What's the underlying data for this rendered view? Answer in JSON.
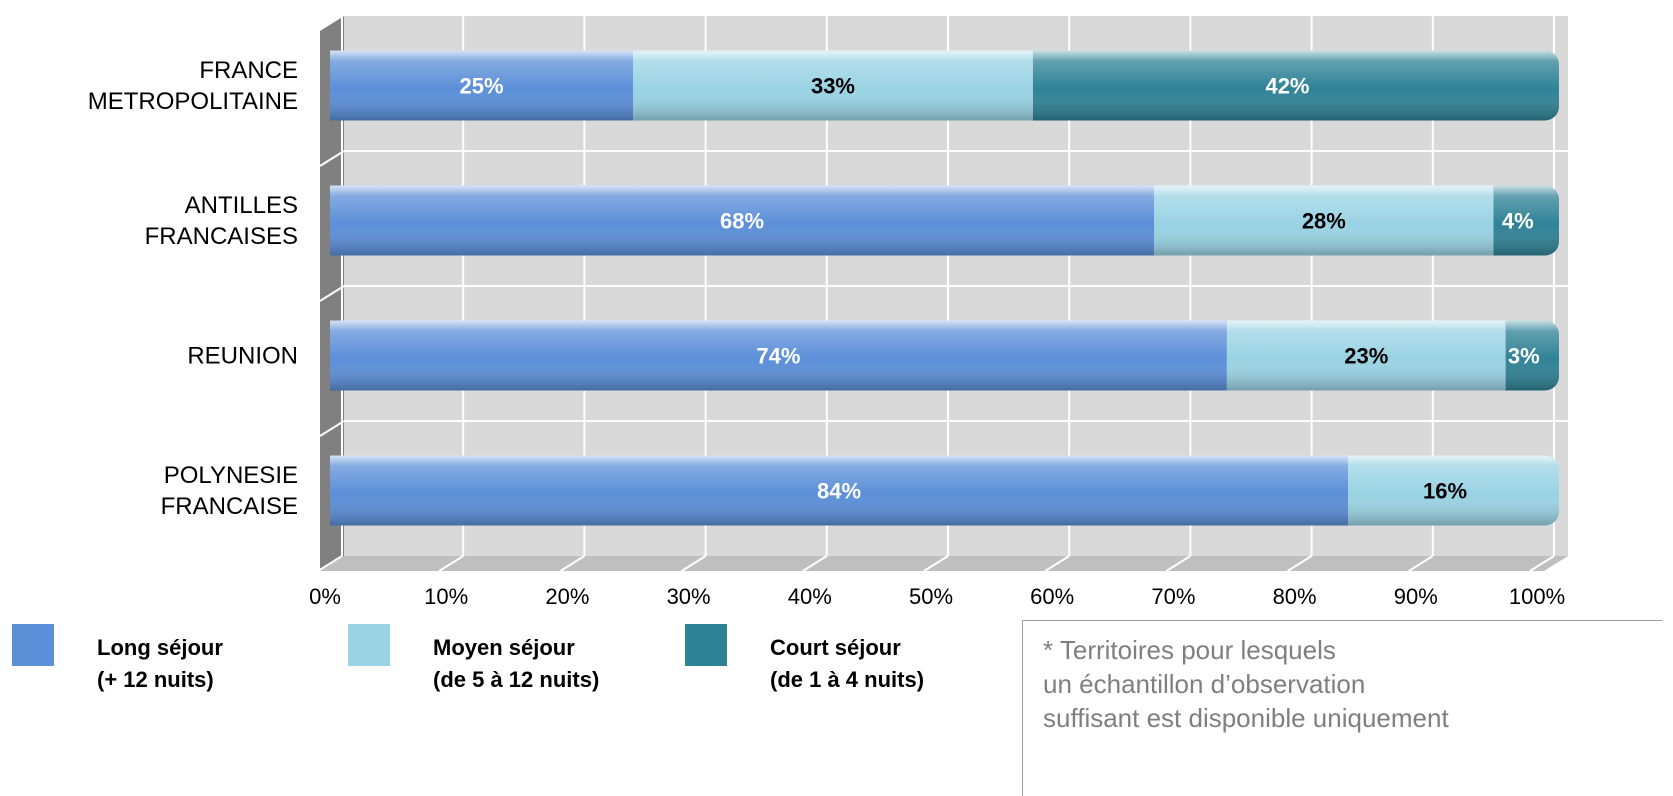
{
  "chart_data": {
    "type": "bar",
    "orientation": "horizontal",
    "stacked": "percent",
    "categories": [
      "FRANCE\nMETROPOLITAINE",
      "ANTILLES\nFRANCAISES",
      "REUNION",
      "POLYNESIE\nFRANCAISE"
    ],
    "series": [
      {
        "name": "Long séjour (+ 12 nuits)",
        "name_lines": [
          "Long séjour",
          "(+ 12 nuits)"
        ],
        "color": "#5b8fd8",
        "label_color": "#ffffff",
        "values": [
          25,
          68,
          74,
          84
        ]
      },
      {
        "name": "Moyen séjour (de 5 à 12 nuits)",
        "name_lines": [
          "Moyen séjour",
          "(de 5 à 12 nuits)"
        ],
        "color": "#9ad3e4",
        "label_color": "#000000",
        "values": [
          33,
          28,
          23,
          16
        ]
      },
      {
        "name": "Court séjour (de 1 à 4 nuits)",
        "name_lines": [
          "Court séjour",
          "(de 1 à 4 nuits)"
        ],
        "color": "#2f8296",
        "label_color": "#ffffff",
        "values": [
          42,
          4,
          3,
          0
        ]
      }
    ],
    "data_labels": [
      [
        "25%",
        "68%",
        "74%",
        "84%"
      ],
      [
        "33%",
        "28%",
        "23%",
        "16%"
      ],
      [
        "42%",
        "4%",
        "3%",
        ""
      ]
    ],
    "x_ticks": [
      "0%",
      "10%",
      "20%",
      "30%",
      "40%",
      "50%",
      "60%",
      "70%",
      "80%",
      "90%",
      "100%"
    ],
    "xlim": [
      0,
      100
    ],
    "grid": true,
    "legend_position": "bottom-left",
    "title": "",
    "xlabel": "",
    "ylabel": ""
  },
  "note": {
    "lines": [
      "*  Territoires pour lesquels",
      "un échantillon d’observation",
      "suffisant est disponible uniquement"
    ]
  },
  "colors": {
    "plot_background": "#d9d9d9",
    "wall_side": "#808080",
    "floor": "#bfbfbf",
    "grid": "#ffffff"
  }
}
